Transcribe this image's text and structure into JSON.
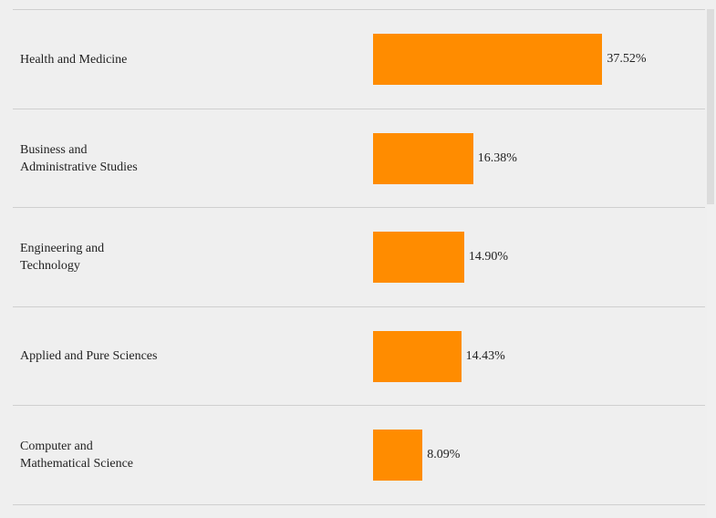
{
  "chart_data": {
    "type": "bar",
    "orientation": "horizontal",
    "categories": [
      "Health and Medicine",
      "Business and\nAdministrative Studies",
      "Engineering and\nTechnology",
      "Applied and Pure Sciences",
      "Computer and\nMathematical Science"
    ],
    "values": [
      37.52,
      16.38,
      14.9,
      14.43,
      8.09
    ],
    "value_labels": [
      "37.52%",
      "16.38%",
      "14.90%",
      "14.43%",
      "8.09%"
    ],
    "xlim": [
      0,
      100
    ],
    "bar_color": "#ff8c00",
    "grid": false,
    "legend": "none"
  },
  "colors": {
    "background": "#efefef",
    "separator": "#cfcfcf",
    "bar": "#ff8c00"
  }
}
